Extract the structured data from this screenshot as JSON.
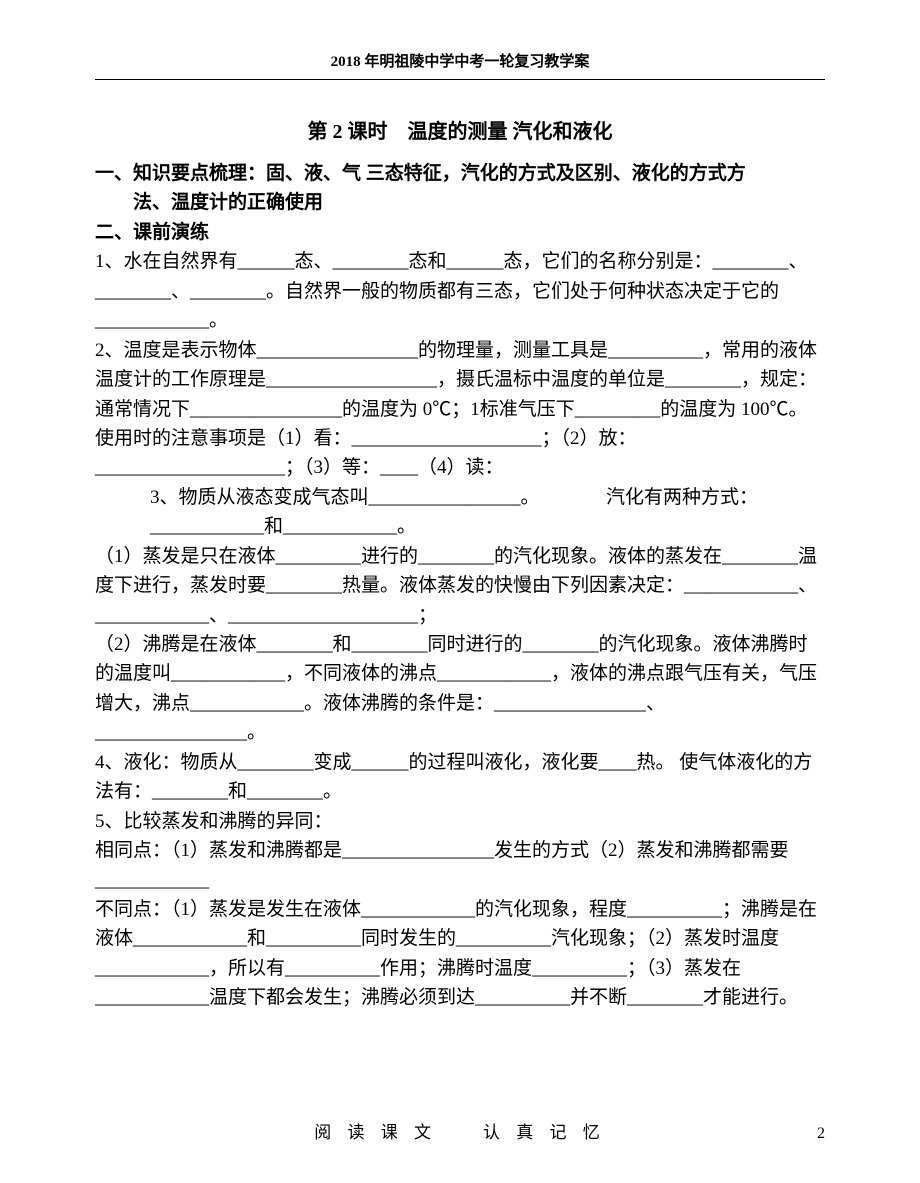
{
  "header": {
    "text": "2018 年明祖陵中学中考一轮复习教学案"
  },
  "title": "第 2 课时　温度的测量  汽化和液化",
  "section1": {
    "heading_line1": "一、知识要点梳理：固、液、气 三态特征，汽化的方式及区别、液化的方式方",
    "heading_line2": "法、温度计的正确使用"
  },
  "section2": {
    "heading": "二、课前演练",
    "q1": "1、水在自然界有______态、________态和______态，它们的名称分别是：________、________、________。自然界一般的物质都有三态，它们处于何种状态决定于它的____________。",
    "q2": "2、温度是表示物体_________________的物理量，测量工具是__________，常用的液体温度计的工作原理是__________________，摄氏温标中温度的单位是________，规定：通常情况下________________的温度为 0℃；1标准气压下_________的温度为 100℃。使用时的注意事项是（1）看：____________________；（2）放：____________________；（3）等：____（4）读：",
    "q3_indent": "3、物质从液态变成气态叫________________。　　　　汽化有两种方式：____________和____________。",
    "q3_sub1": "（1）蒸发是只在液体_________进行的________的汽化现象。液体的蒸发在________温度下进行，蒸发时要________热量。液体蒸发的快慢由下列因素决定：____________、____________、____________________；",
    "q3_sub2": "（2）沸腾是在液体________和________同时进行的________的汽化现象。液体沸腾时的温度叫____________，不同液体的沸点____________，液体的沸点跟气压有关，气压增大，沸点____________。液体沸腾的条件是：________________、________________。",
    "q4": "4、液化：物质从________变成______的过程叫液化，液化要____热。 使气体液化的方法有：________和________。",
    "q5": "5、比较蒸发和沸腾的异同：",
    "q5_same": "相同点：（1）蒸发和沸腾都是________________发生的方式（2）蒸发和沸腾都需要____________",
    "q5_diff": "不同点：（1）蒸发是发生在液体____________的汽化现象，程度__________；沸腾是在液体____________和__________同时发生的__________汽化现象；（2）蒸发时温度____________，所以有__________作用；沸腾时温度__________；（3）蒸发在____________温度下都会发生；沸腾必须到达__________并不断________才能进行。"
  },
  "footer": {
    "text": "阅 读 课 文　　认 真 记 忆",
    "page": "2"
  }
}
